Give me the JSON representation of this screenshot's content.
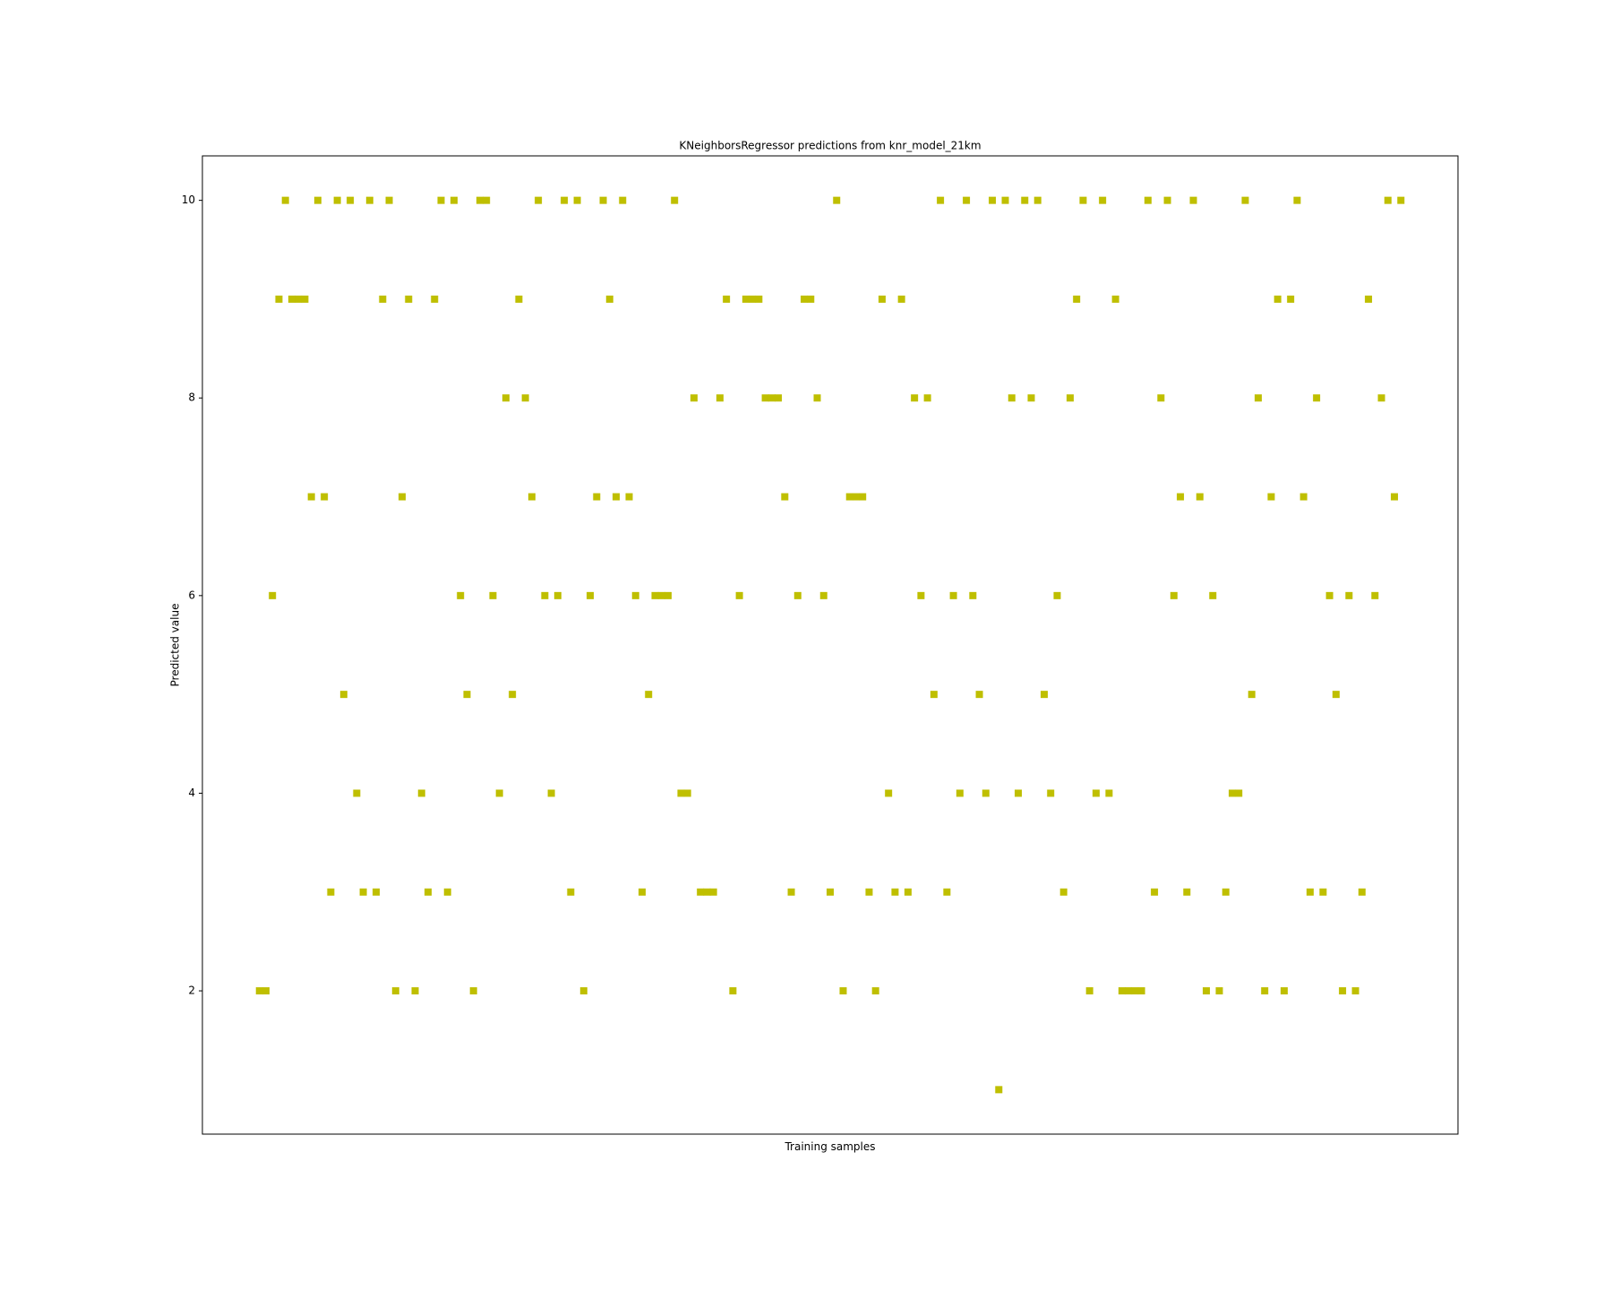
{
  "chart_data": {
    "type": "scatter",
    "title": "KNeighborsRegressor predictions from knr_model_21km",
    "xlabel": "Training samples",
    "ylabel": "Predicted value",
    "color": "#bfbf00",
    "marker": "square",
    "values": [
      2,
      2,
      6,
      9,
      10,
      9,
      9,
      9,
      7,
      10,
      7,
      3,
      10,
      5,
      10,
      4,
      3,
      10,
      3,
      9,
      10,
      2,
      7,
      9,
      2,
      4,
      3,
      9,
      10,
      3,
      10,
      6,
      5,
      2,
      10,
      10,
      6,
      4,
      8,
      5,
      9,
      8,
      7,
      10,
      6,
      4,
      6,
      10,
      3,
      10,
      2,
      6,
      7,
      10,
      9,
      7,
      10,
      7,
      6,
      3,
      5,
      6,
      6,
      6,
      10,
      4,
      4,
      8,
      3,
      3,
      3,
      8,
      9,
      2,
      6,
      9,
      9,
      9,
      8,
      8,
      8,
      7,
      3,
      6,
      9,
      9,
      8,
      6,
      3,
      10,
      2,
      7,
      7,
      7,
      3,
      2,
      9,
      4,
      3,
      9,
      3,
      8,
      6,
      8,
      5,
      10,
      3,
      6,
      4,
      10,
      6,
      5,
      4,
      10,
      1,
      10,
      8,
      4,
      10,
      8,
      10,
      5,
      4,
      6,
      3,
      8,
      9,
      10,
      2,
      4,
      10,
      4,
      9,
      2,
      2,
      2,
      2,
      10,
      3,
      8,
      10,
      6,
      7,
      3,
      10,
      7,
      2,
      6,
      2,
      3,
      4,
      4,
      10,
      5,
      8,
      2,
      7,
      9,
      2,
      9,
      10,
      7,
      3,
      8,
      3,
      6,
      5,
      2,
      6,
      2,
      3,
      9,
      6,
      8,
      10,
      7,
      10
    ],
    "xlim": [
      -8.8,
      184.8
    ],
    "ylim": [
      0.55,
      10.45
    ],
    "yticks": [
      2,
      4,
      6,
      8,
      10
    ]
  }
}
